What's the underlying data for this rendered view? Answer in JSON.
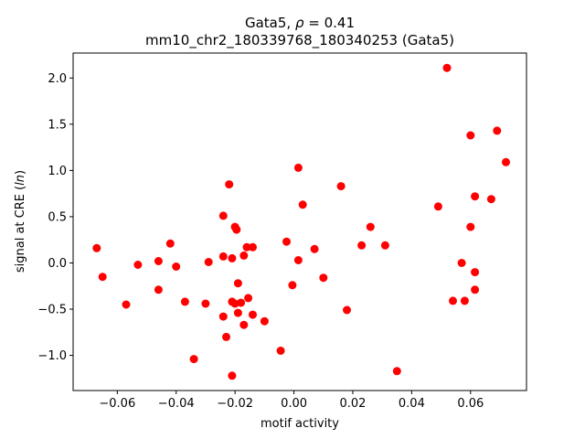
{
  "chart_data": {
    "type": "scatter",
    "title_line1": "Gata5, ρ = 0.41",
    "title_line2": "mm10_chr2_180339768_180340253 (Gata5)",
    "xlabel": "motif activity",
    "ylabel": "signal at CRE (ln)",
    "xlim": [
      -0.075,
      0.079
    ],
    "ylim": [
      -1.38,
      2.27
    ],
    "xticks": [
      -0.06,
      -0.04,
      -0.02,
      0.0,
      0.02,
      0.04,
      0.06
    ],
    "xtick_labels": [
      "−0.06",
      "−0.04",
      "−0.02",
      "0.00",
      "0.02",
      "0.04",
      "0.06"
    ],
    "yticks": [
      -1.0,
      -0.5,
      0.0,
      0.5,
      1.0,
      1.5,
      2.0
    ],
    "ytick_labels": [
      "−1.0",
      "−0.5",
      "0.0",
      "0.5",
      "1.0",
      "1.5",
      "2.0"
    ],
    "grid": false,
    "marker_color": "#ff0000",
    "points": [
      {
        "x": -0.067,
        "y": 0.16
      },
      {
        "x": -0.065,
        "y": -0.15
      },
      {
        "x": -0.057,
        "y": -0.45
      },
      {
        "x": -0.053,
        "y": -0.02
      },
      {
        "x": -0.046,
        "y": 0.02
      },
      {
        "x": -0.046,
        "y": -0.29
      },
      {
        "x": -0.042,
        "y": 0.21
      },
      {
        "x": -0.04,
        "y": -0.04
      },
      {
        "x": -0.037,
        "y": -0.42
      },
      {
        "x": -0.034,
        "y": -1.04
      },
      {
        "x": -0.03,
        "y": -0.44
      },
      {
        "x": -0.029,
        "y": 0.01
      },
      {
        "x": -0.024,
        "y": -0.58
      },
      {
        "x": -0.024,
        "y": 0.07
      },
      {
        "x": -0.024,
        "y": 0.51
      },
      {
        "x": -0.023,
        "y": -0.8
      },
      {
        "x": -0.022,
        "y": 0.85
      },
      {
        "x": -0.021,
        "y": -0.42
      },
      {
        "x": -0.021,
        "y": 0.05
      },
      {
        "x": -0.021,
        "y": -1.22
      },
      {
        "x": -0.02,
        "y": 0.39
      },
      {
        "x": -0.02,
        "y": -0.44
      },
      {
        "x": -0.0195,
        "y": 0.36
      },
      {
        "x": -0.019,
        "y": -0.22
      },
      {
        "x": -0.019,
        "y": -0.54
      },
      {
        "x": -0.018,
        "y": -0.43
      },
      {
        "x": -0.017,
        "y": 0.08
      },
      {
        "x": -0.017,
        "y": -0.67
      },
      {
        "x": -0.016,
        "y": 0.17
      },
      {
        "x": -0.0155,
        "y": -0.38
      },
      {
        "x": -0.014,
        "y": -0.56
      },
      {
        "x": -0.014,
        "y": 0.17
      },
      {
        "x": -0.01,
        "y": -0.63
      },
      {
        "x": -0.0045,
        "y": -0.95
      },
      {
        "x": -0.0025,
        "y": 0.23
      },
      {
        "x": -0.0005,
        "y": -0.24
      },
      {
        "x": 0.0015,
        "y": 1.03
      },
      {
        "x": 0.0015,
        "y": 0.03
      },
      {
        "x": 0.003,
        "y": 0.63
      },
      {
        "x": 0.007,
        "y": 0.15
      },
      {
        "x": 0.01,
        "y": -0.16
      },
      {
        "x": 0.016,
        "y": 0.83
      },
      {
        "x": 0.018,
        "y": -0.51
      },
      {
        "x": 0.023,
        "y": 0.19
      },
      {
        "x": 0.026,
        "y": 0.39
      },
      {
        "x": 0.031,
        "y": 0.19
      },
      {
        "x": 0.035,
        "y": -1.17
      },
      {
        "x": 0.049,
        "y": 0.61
      },
      {
        "x": 0.052,
        "y": 2.11
      },
      {
        "x": 0.054,
        "y": -0.41
      },
      {
        "x": 0.057,
        "y": 0.0
      },
      {
        "x": 0.058,
        "y": -0.41
      },
      {
        "x": 0.06,
        "y": 0.39
      },
      {
        "x": 0.06,
        "y": 1.38
      },
      {
        "x": 0.0615,
        "y": 0.72
      },
      {
        "x": 0.0615,
        "y": -0.1
      },
      {
        "x": 0.0615,
        "y": -0.29
      },
      {
        "x": 0.067,
        "y": 0.69
      },
      {
        "x": 0.069,
        "y": 1.43
      },
      {
        "x": 0.072,
        "y": 1.09
      }
    ]
  }
}
